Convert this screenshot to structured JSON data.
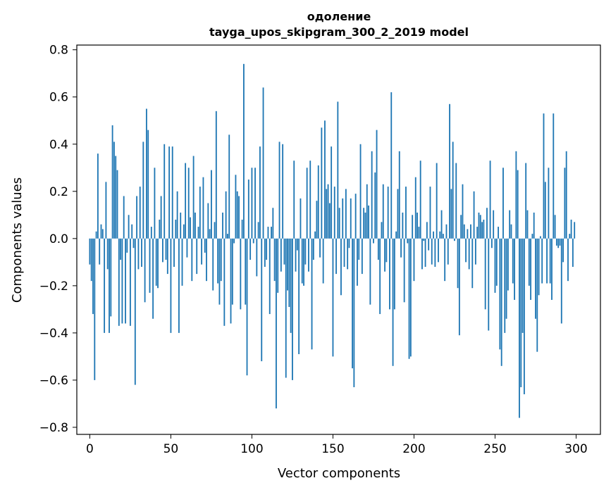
{
  "chart_data": {
    "type": "bar",
    "title": "одоление",
    "subtitle": "tayga_upos_skipgram_300_2_2019 model",
    "xlabel": "Vector components",
    "ylabel": "Components values",
    "xlim": [
      -8,
      315
    ],
    "ylim": [
      -0.83,
      0.82
    ],
    "xticks": [
      0,
      50,
      100,
      150,
      200,
      250,
      300
    ],
    "xtick_labels": [
      "0",
      "50",
      "100",
      "150",
      "200",
      "250",
      "300"
    ],
    "yticks": [
      -0.8,
      -0.6,
      -0.4,
      -0.2,
      0.0,
      0.2,
      0.4,
      0.6,
      0.8
    ],
    "ytick_labels": [
      "−0.8",
      "−0.6",
      "−0.4",
      "−0.2",
      "0.0",
      "0.2",
      "0.4",
      "0.6",
      "0.8"
    ],
    "bar_color": "#1f77b4",
    "grid": false,
    "x": "0..299 (one bar per vector component)",
    "values": [
      -0.11,
      -0.18,
      -0.32,
      -0.6,
      0.03,
      0.36,
      -0.11,
      0.06,
      0.04,
      -0.4,
      0.24,
      -0.13,
      -0.4,
      -0.33,
      0.48,
      0.41,
      0.35,
      0.29,
      -0.37,
      -0.09,
      -0.36,
      0.18,
      -0.36,
      -0.06,
      0.1,
      -0.37,
      0.06,
      -0.04,
      -0.62,
      0.18,
      -0.13,
      0.22,
      -0.12,
      0.41,
      -0.27,
      0.55,
      0.46,
      -0.23,
      0.05,
      -0.34,
      0.3,
      -0.2,
      -0.21,
      0.08,
      0.18,
      -0.1,
      0.4,
      -0.09,
      -0.15,
      0.39,
      -0.4,
      0.39,
      -0.12,
      0.08,
      0.2,
      -0.4,
      0.11,
      -0.2,
      0.06,
      0.32,
      -0.08,
      0.3,
      0.09,
      -0.18,
      0.35,
      0.11,
      -0.15,
      0.05,
      0.22,
      -0.11,
      0.26,
      -0.06,
      -0.18,
      0.15,
      0.04,
      0.29,
      -0.22,
      0.07,
      0.54,
      -0.19,
      -0.28,
      -0.18,
      0.11,
      -0.37,
      0.2,
      0.02,
      0.44,
      -0.36,
      -0.28,
      -0.02,
      0.27,
      0.2,
      0.18,
      -0.3,
      0.08,
      0.74,
      -0.28,
      -0.58,
      0.25,
      -0.09,
      0.3,
      -0.02,
      0.3,
      -0.16,
      0.07,
      0.39,
      -0.52,
      0.64,
      -0.12,
      -0.09,
      0.05,
      -0.32,
      0.05,
      0.13,
      -0.18,
      -0.72,
      -0.23,
      0.41,
      -0.14,
      0.4,
      -0.11,
      -0.59,
      -0.22,
      -0.29,
      -0.4,
      -0.6,
      0.33,
      -0.14,
      -0.05,
      -0.49,
      0.17,
      -0.19,
      -0.2,
      -0.11,
      0.3,
      -0.14,
      0.33,
      -0.47,
      -0.09,
      0.03,
      0.16,
      0.31,
      -0.08,
      0.47,
      -0.19,
      0.5,
      0.21,
      0.23,
      0.15,
      0.39,
      -0.5,
      0.22,
      -0.15,
      0.58,
      0.13,
      -0.24,
      0.17,
      -0.12,
      0.21,
      -0.13,
      -0.04,
      0.17,
      -0.55,
      -0.63,
      0.19,
      -0.2,
      -0.09,
      0.4,
      -0.15,
      0.13,
      0.11,
      0.23,
      0.14,
      -0.28,
      0.37,
      -0.02,
      0.28,
      0.46,
      -0.09,
      -0.32,
      0.07,
      0.23,
      -0.14,
      -0.1,
      0.22,
      -0.3,
      0.62,
      -0.54,
      -0.3,
      0.03,
      0.21,
      0.37,
      -0.08,
      0.11,
      -0.27,
      0.22,
      -0.02,
      -0.51,
      -0.5,
      0.1,
      -0.18,
      0.26,
      0.11,
      0.05,
      0.33,
      -0.13,
      -0.01,
      -0.12,
      0.07,
      -0.05,
      0.22,
      -0.11,
      0.03,
      -0.12,
      0.32,
      -0.1,
      0.03,
      0.12,
      0.02,
      -0.18,
      0.06,
      -0.11,
      0.57,
      0.21,
      0.41,
      -0.01,
      0.32,
      -0.21,
      -0.41,
      0.1,
      0.23,
      0.06,
      -0.1,
      0.04,
      -0.13,
      0.06,
      -0.21,
      0.2,
      -0.11,
      0.05,
      0.11,
      0.1,
      0.07,
      0.08,
      -0.3,
      0.13,
      -0.39,
      0.33,
      -0.04,
      0.12,
      -0.23,
      -0.2,
      0.05,
      -0.47,
      -0.54,
      0.3,
      -0.4,
      -0.34,
      -0.22,
      0.12,
      0.06,
      -0.19,
      -0.26,
      0.37,
      0.29,
      -0.76,
      -0.63,
      -0.4,
      -0.66,
      0.32,
      0.12,
      -0.2,
      -0.26,
      0.02,
      0.11,
      -0.34,
      -0.48,
      -0.24,
      0.01,
      -0.19,
      0.53,
      0.24,
      -0.19,
      0.3,
      -0.19,
      -0.26,
      0.53,
      0.1,
      -0.03,
      -0.04,
      -0.03,
      -0.36,
      -0.1,
      0.3,
      0.37,
      -0.18,
      0.02,
      0.08,
      -0.12,
      0.07
    ]
  }
}
